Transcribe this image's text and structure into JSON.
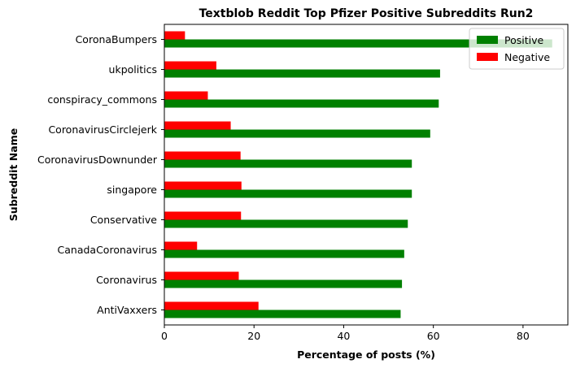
{
  "chart_data": {
    "type": "bar",
    "orientation": "horizontal",
    "title": "Textblob Reddit Top Pfizer Positive Subreddits Run2",
    "xlabel": "Percentage of posts (%)",
    "ylabel": "Subreddit Name",
    "xlim": [
      0,
      90
    ],
    "xticks": [
      "0",
      "20",
      "40",
      "60",
      "80"
    ],
    "grid": false,
    "legend_position": "top-right",
    "categories": [
      "CoronaBumpers",
      "ukpolitics",
      "conspiracy_commons",
      "CoronavirusCirclejerk",
      "CoronavirusDownunder",
      "singapore",
      "Conservative",
      "CanadaCoronavirus",
      "Coronavirus",
      "AntiVaxxers"
    ],
    "series": [
      {
        "name": "Positive",
        "color": "#008000",
        "values": [
          86.5,
          61.5,
          61.2,
          59.3,
          55.2,
          55.2,
          54.3,
          53.5,
          53.0,
          52.7
        ]
      },
      {
        "name": "Negative",
        "color": "#ff0000",
        "values": [
          4.6,
          11.6,
          9.7,
          14.8,
          17.0,
          17.2,
          17.1,
          7.3,
          16.6,
          21.0
        ]
      }
    ]
  }
}
